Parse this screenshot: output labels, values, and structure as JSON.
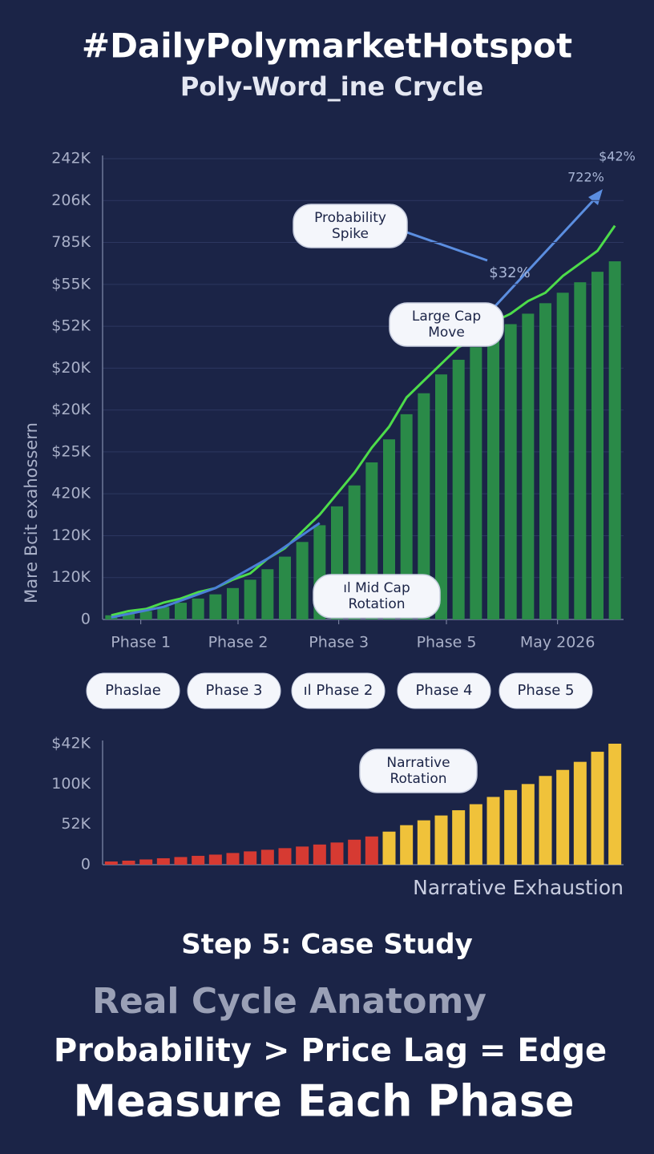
{
  "header": {
    "title": "#DailyPolymarketHotspot",
    "subtitle": "Poly-Word_ine Crycle"
  },
  "chart_data": [
    {
      "type": "bar",
      "ylabel": "Mare Bcit exahossern",
      "ylim": [
        0,
        11
      ],
      "yticks": [
        0,
        {
          "value": 1,
          "label": "120K"
        },
        {
          "value": 2,
          "label": "120K"
        },
        {
          "value": 3,
          "label": "420K"
        },
        {
          "value": 4,
          "label": "$25K"
        },
        {
          "value": 5,
          "label": "$20K"
        },
        {
          "value": 6,
          "label": "$20K"
        },
        {
          "value": 7,
          "label": "$52K"
        },
        {
          "value": 8,
          "label": "$55K"
        },
        {
          "value": 9,
          "label": "785K"
        },
        {
          "value": 10,
          "label": "206K"
        },
        {
          "value": 11,
          "label": "242K"
        }
      ],
      "xlim": [
        -0.5,
        29.5
      ],
      "xticks": [
        {
          "value": 1.7,
          "label": "Phase 1"
        },
        {
          "value": 7.3,
          "label": "Phase 2"
        },
        {
          "value": 13.1,
          "label": "Phase 3"
        },
        {
          "value": 19.3,
          "label": "Phase 5"
        },
        {
          "value": 25.7,
          "label": "May 2026"
        }
      ],
      "grid": true,
      "series": [
        {
          "kind": "bar",
          "color": "#2a8a48",
          "values": [
            0.1,
            0.15,
            0.2,
            0.3,
            0.4,
            0.5,
            0.6,
            0.75,
            0.95,
            1.2,
            1.5,
            1.85,
            2.25,
            2.7,
            3.2,
            3.75,
            4.3,
            4.9,
            5.4,
            5.85,
            6.2,
            6.5,
            6.8,
            7.05,
            7.3,
            7.55,
            7.8,
            8.05,
            8.3,
            8.55
          ]
        },
        {
          "kind": "line",
          "color": "#4ddc4a",
          "values": [
            0.1,
            0.2,
            0.25,
            0.4,
            0.5,
            0.65,
            0.75,
            0.95,
            1.1,
            1.45,
            1.7,
            2.1,
            2.5,
            3.0,
            3.5,
            4.1,
            4.6,
            5.3,
            5.7,
            6.1,
            6.5,
            6.7,
            7.1,
            7.3,
            7.6,
            7.8,
            8.2,
            8.5,
            8.8,
            9.4
          ]
        },
        {
          "kind": "line",
          "color": "#4a7fd8",
          "x": [
            0,
            3,
            6,
            9,
            12
          ],
          "values": [
            0.05,
            0.3,
            0.75,
            1.45,
            2.3
          ]
        }
      ],
      "annotations": [
        "$42%",
        "722%",
        "$32%"
      ],
      "callouts": [
        [
          "Probability",
          "Spike"
        ],
        [
          "Large Cap",
          "Move"
        ],
        [
          "ıl Mid Cap",
          "Rotation"
        ]
      ]
    },
    {
      "type": "bar",
      "ylim": [
        0,
        3
      ],
      "yticks": [
        0,
        {
          "value": 1,
          "label": "52K"
        },
        {
          "value": 2,
          "label": "100K"
        },
        {
          "value": 3,
          "label": "$42K"
        }
      ],
      "xlim": [
        -0.5,
        29.5
      ],
      "xlabel": "Narrative Exhaustion",
      "values": [
        0.08,
        0.1,
        0.13,
        0.16,
        0.19,
        0.22,
        0.25,
        0.29,
        0.33,
        0.37,
        0.41,
        0.45,
        0.5,
        0.55,
        0.62,
        0.7,
        0.82,
        0.98,
        1.1,
        1.22,
        1.35,
        1.5,
        1.68,
        1.85,
        2.0,
        2.2,
        2.35,
        2.55,
        2.8,
        3.0
      ],
      "colors": [
        "#d63a32",
        "#d63a32",
        "#d63a32",
        "#d63a32",
        "#d63a32",
        "#d63a32",
        "#d63a32",
        "#d63a32",
        "#d63a32",
        "#d63a32",
        "#d63a32",
        "#d63a32",
        "#d63a32",
        "#d63a32",
        "#d63a32",
        "#d63a32",
        "#f0c23a",
        "#f0c23a",
        "#f0c23a",
        "#f0c23a",
        "#f0c23a",
        "#f0c23a",
        "#f0c23a",
        "#f0c23a",
        "#f0c23a",
        "#f0c23a",
        "#f0c23a",
        "#f0c23a",
        "#f0c23a",
        "#f0c23a"
      ],
      "callouts": [
        [
          "Narrative",
          "Rotation"
        ]
      ]
    }
  ],
  "phase_pills": [
    "Phaslae",
    "Phase 3",
    "ıl Phase 2",
    "Phase 4",
    "Phase 5"
  ],
  "footer": {
    "step": "Step 5: Case Study",
    "heading": "Real Cycle Anatomy",
    "equation": "Probability > Price Lag = Edge",
    "tagline": "Measure Each Phase"
  }
}
